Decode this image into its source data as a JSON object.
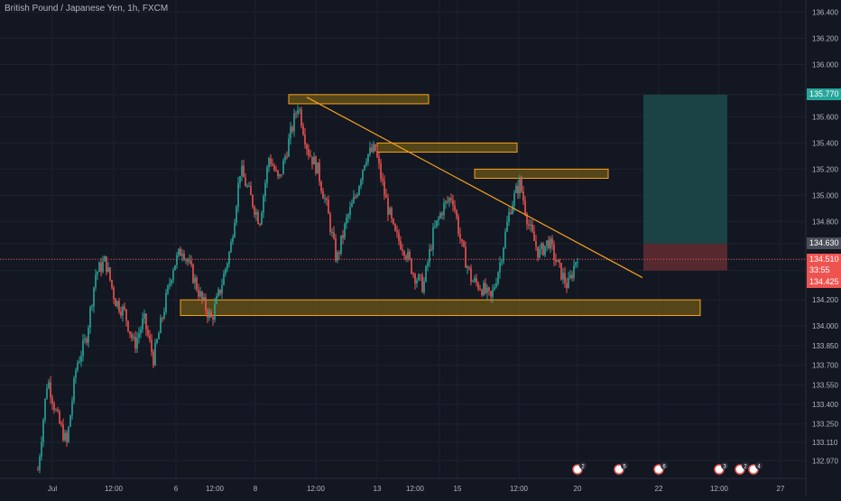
{
  "chart": {
    "title": "British Pound / Japanese Yen, 1h, FXCM",
    "colors": {
      "background": "#131722",
      "grid": "#1e222d",
      "up": "#26a69a",
      "down": "#ef5350",
      "box_fill": "#8a6d10",
      "box_stroke": "#f7a21b",
      "trendline": "#f7a21b",
      "target_zone": "#1d4a4a",
      "stop_zone": "#5a2a32",
      "axis_text": "#b2b5be"
    },
    "price_ticks": [
      "136.400",
      "136.200",
      "136.000",
      "135.770",
      "135.600",
      "135.400",
      "135.200",
      "135.000",
      "134.800",
      "134.630",
      "134.510",
      "134.425",
      "134.200",
      "134.000",
      "133.850",
      "133.700",
      "133.550",
      "133.400",
      "133.250",
      "133.110",
      "132.970",
      "132.820"
    ],
    "time_ticks": [
      "Jul",
      "12:00",
      "6",
      "12:00",
      "8",
      "12:00",
      "13",
      "12:00",
      "15",
      "12:00",
      "20",
      "22",
      "12:00",
      "27"
    ],
    "price_labels": [
      {
        "name": "target-price-tag",
        "value": "135.770",
        "bg": "#26a69a",
        "color": "#ffffff"
      },
      {
        "name": "entry-price-tag",
        "value": "134.630",
        "bg": "#4a4e59",
        "color": "#ffffff"
      },
      {
        "name": "current-price-tag",
        "value": "134.510",
        "bg": "#ef5350",
        "color": "#ffffff"
      },
      {
        "name": "countdown-tag",
        "value": "33:55",
        "bg": "#ef5350",
        "color": "#ffffff"
      },
      {
        "name": "stop-price-tag",
        "value": "134.425",
        "bg": "#ef5350",
        "color": "#ffffff"
      }
    ],
    "event_badges": [
      "2",
      "5",
      "6",
      "3",
      "2",
      "4"
    ]
  },
  "chart_data": {
    "type": "candlestick",
    "title": "British Pound / Japanese Yen, 1h, FXCM",
    "ylim": [
      132.82,
      136.48
    ],
    "x_ticks": [
      "Jul",
      "12:00",
      "6",
      "12:00",
      "8",
      "12:00",
      "13",
      "12:00",
      "15",
      "12:00",
      "20",
      "22",
      "12:00",
      "27"
    ],
    "close_path": [
      132.9,
      133.6,
      133.3,
      133.1,
      133.7,
      133.9,
      134.4,
      134.5,
      134.2,
      134.1,
      133.85,
      134.05,
      133.75,
      134.1,
      134.45,
      134.6,
      134.4,
      134.2,
      134.05,
      134.3,
      134.6,
      135.2,
      135.0,
      134.8,
      135.3,
      135.1,
      135.4,
      135.7,
      135.35,
      135.2,
      134.9,
      134.5,
      134.8,
      135.0,
      135.3,
      135.35,
      135.0,
      134.7,
      134.6,
      134.4,
      134.3,
      134.7,
      134.9,
      135.0,
      134.6,
      134.35,
      134.3,
      134.2,
      134.5,
      134.9,
      135.1,
      134.75,
      134.55,
      134.65,
      134.45,
      134.3,
      134.55
    ]
  }
}
